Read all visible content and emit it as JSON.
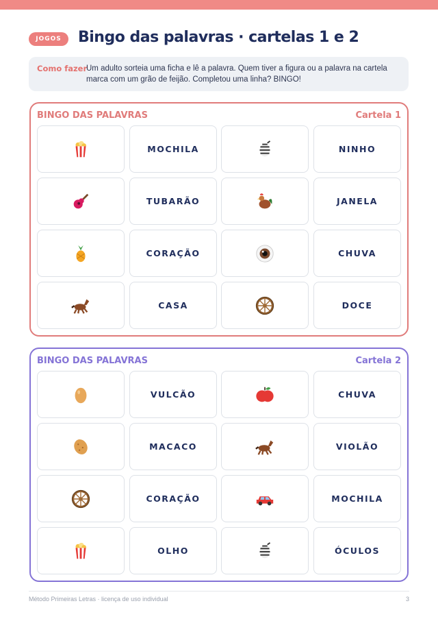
{
  "header": {
    "tag": "JOGOS",
    "title": "Bingo das palavras · cartelas 1 e 2"
  },
  "instructions": {
    "label": "Como fazer",
    "text": "Um adulto sorteia uma ficha e lê a palavra. Quem tiver a figura ou a palavra na cartela marca com um grão de feijão. Completou uma linha? BINGO!"
  },
  "cards": [
    {
      "heading": "BINGO DAS PALAVRAS",
      "label": "Cartela 1",
      "words": [
        "MOCHILA",
        "NINHO",
        "TUBARÃO",
        "JANELA",
        "CORAÇÃO",
        "CHUVA",
        "CASA",
        "DOCE"
      ]
    },
    {
      "heading": "BINGO DAS PALAVRAS",
      "label": "Cartela 2",
      "words": [
        "VULCÃO",
        "CHUVA",
        "MACACO",
        "VIOLÃO",
        "CORAÇÃO",
        "MOCHILA",
        "OLHO",
        "ÓCULOS"
      ]
    }
  ],
  "footer": {
    "text": "Método Primeiras Letras · licença de uso individual",
    "page": "3"
  }
}
